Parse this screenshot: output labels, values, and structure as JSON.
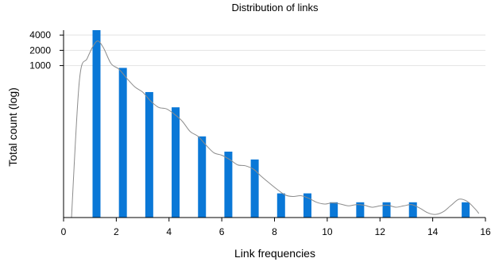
{
  "chart_data": {
    "type": "bar",
    "title": "Distribution of links",
    "xlabel": "Link frequencies",
    "ylabel": "Total count (log)",
    "xlim": [
      0,
      16
    ],
    "x_ticks": [
      0,
      2,
      4,
      6,
      8,
      10,
      12,
      14,
      16
    ],
    "y_scale": "log",
    "ylim": [
      1,
      5000
    ],
    "y_ticks": [
      1000,
      2000,
      4000
    ],
    "y_tick_labels": [
      "1000",
      "2000",
      "4000"
    ],
    "grid": true,
    "bar_color": "#0a78d7",
    "density_color": "#8c8c8c",
    "bars": [
      {
        "x": 1.25,
        "value": 5000
      },
      {
        "x": 2.25,
        "value": 900
      },
      {
        "x": 3.25,
        "value": 300
      },
      {
        "x": 4.25,
        "value": 150
      },
      {
        "x": 5.25,
        "value": 40
      },
      {
        "x": 6.25,
        "value": 20
      },
      {
        "x": 7.25,
        "value": 14
      },
      {
        "x": 8.25,
        "value": 3
      },
      {
        "x": 9.25,
        "value": 3
      },
      {
        "x": 10.25,
        "value": 2
      },
      {
        "x": 11.25,
        "value": 2
      },
      {
        "x": 12.25,
        "value": 2
      },
      {
        "x": 13.25,
        "value": 2
      },
      {
        "x": 15.25,
        "value": 2
      }
    ],
    "density_curve": [
      [
        0.3,
        1
      ],
      [
        0.6,
        500
      ],
      [
        0.9,
        1400
      ],
      [
        1.25,
        3000
      ],
      [
        1.5,
        2300
      ],
      [
        1.8,
        1100
      ],
      [
        2.1,
        850
      ],
      [
        2.4,
        560
      ],
      [
        2.7,
        380
      ],
      [
        3.0,
        300
      ],
      [
        3.3,
        200
      ],
      [
        3.6,
        150
      ],
      [
        3.9,
        140
      ],
      [
        4.2,
        110
      ],
      [
        4.5,
        80
      ],
      [
        4.8,
        50
      ],
      [
        5.1,
        40
      ],
      [
        5.4,
        27
      ],
      [
        5.7,
        19
      ],
      [
        6.0,
        17
      ],
      [
        6.3,
        14
      ],
      [
        6.6,
        11
      ],
      [
        6.9,
        10.5
      ],
      [
        7.2,
        9
      ],
      [
        7.5,
        6.5
      ],
      [
        7.8,
        4.8
      ],
      [
        8.1,
        3.6
      ],
      [
        8.4,
        2.8
      ],
      [
        8.7,
        2.6
      ],
      [
        9.0,
        2.7
      ],
      [
        9.3,
        2.4
      ],
      [
        9.6,
        2.0
      ],
      [
        9.9,
        1.85
      ],
      [
        10.2,
        1.95
      ],
      [
        10.5,
        1.85
      ],
      [
        10.8,
        1.7
      ],
      [
        11.1,
        1.8
      ],
      [
        11.4,
        1.75
      ],
      [
        11.7,
        1.6
      ],
      [
        12.0,
        1.7
      ],
      [
        12.3,
        1.75
      ],
      [
        12.6,
        1.6
      ],
      [
        12.9,
        1.7
      ],
      [
        13.2,
        1.8
      ],
      [
        13.5,
        1.55
      ],
      [
        13.8,
        1.25
      ],
      [
        14.1,
        1.15
      ],
      [
        14.4,
        1.3
      ],
      [
        14.7,
        1.75
      ],
      [
        15.0,
        2.3
      ],
      [
        15.3,
        2.1
      ],
      [
        15.6,
        1.5
      ],
      [
        15.75,
        1.2
      ]
    ]
  }
}
